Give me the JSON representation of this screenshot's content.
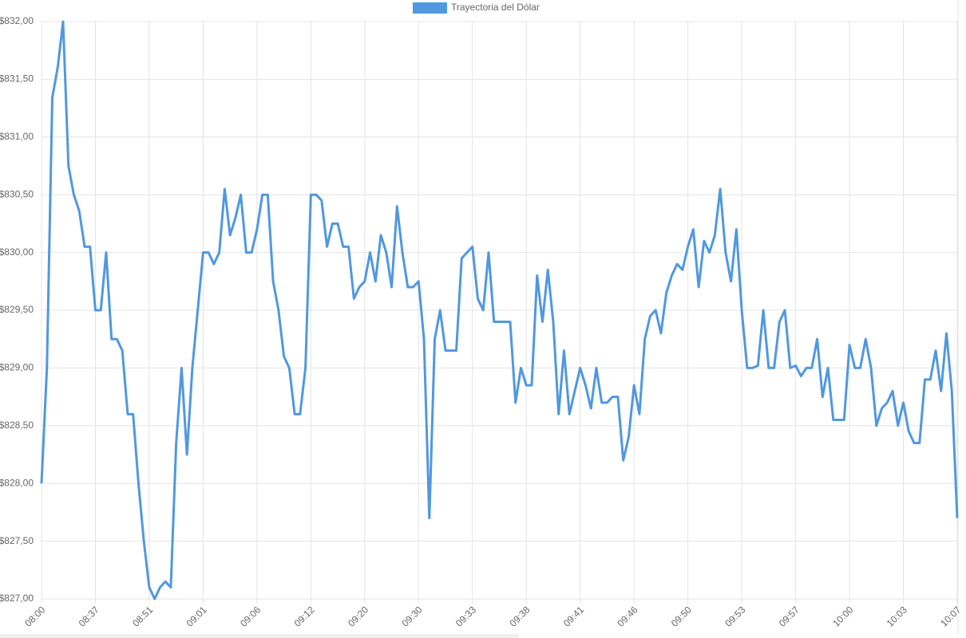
{
  "chart_data": {
    "type": "line",
    "legend": "top",
    "grid": true,
    "categories": [
      "08:00",
      null,
      null,
      null,
      null,
      null,
      null,
      null,
      null,
      null,
      "08:37",
      null,
      null,
      null,
      null,
      null,
      null,
      null,
      null,
      null,
      "08:51",
      null,
      null,
      null,
      null,
      null,
      null,
      null,
      null,
      null,
      "09:01",
      null,
      null,
      null,
      null,
      null,
      null,
      null,
      null,
      null,
      "09:06",
      null,
      null,
      null,
      null,
      null,
      null,
      null,
      null,
      null,
      "09:12",
      null,
      null,
      null,
      null,
      null,
      null,
      null,
      null,
      null,
      "09:20",
      null,
      null,
      null,
      null,
      null,
      null,
      null,
      null,
      null,
      "09:30",
      null,
      null,
      null,
      null,
      null,
      null,
      null,
      null,
      null,
      "09:33",
      null,
      null,
      null,
      null,
      null,
      null,
      null,
      null,
      null,
      "09:38",
      null,
      null,
      null,
      null,
      null,
      null,
      null,
      null,
      null,
      "09:41",
      null,
      null,
      null,
      null,
      null,
      null,
      null,
      null,
      null,
      "09:46",
      null,
      null,
      null,
      null,
      null,
      null,
      null,
      null,
      null,
      "09:50",
      null,
      null,
      null,
      null,
      null,
      null,
      null,
      null,
      null,
      "09:53",
      null,
      null,
      null,
      null,
      null,
      null,
      null,
      null,
      null,
      "09:57",
      null,
      null,
      null,
      null,
      null,
      null,
      null,
      null,
      null,
      "10:00",
      null,
      null,
      null,
      null,
      null,
      null,
      null,
      null,
      null,
      "10:03",
      null,
      null,
      null,
      null,
      null,
      null,
      null,
      null,
      null,
      "10:07"
    ],
    "series": [
      {
        "name": "Trayectoria del Dólar",
        "color": "#5098e0",
        "values": [
          828.0,
          829.0,
          831.34,
          831.6,
          832.0,
          830.75,
          830.5,
          830.36,
          830.05,
          830.05,
          829.5,
          829.5,
          830.0,
          829.25,
          829.25,
          829.15,
          828.6,
          828.6,
          828.0,
          827.5,
          827.1,
          827.0,
          827.1,
          827.15,
          827.1,
          828.35,
          829.0,
          828.25,
          829.0,
          829.5,
          830.0,
          830.0,
          829.9,
          830.0,
          830.55,
          830.15,
          830.3,
          830.5,
          830.0,
          830.0,
          830.2,
          830.5,
          830.5,
          829.75,
          829.5,
          829.1,
          829.0,
          828.6,
          828.6,
          829.0,
          830.5,
          830.5,
          830.45,
          830.05,
          830.25,
          830.25,
          830.05,
          830.05,
          829.6,
          829.7,
          829.75,
          830.0,
          829.75,
          830.15,
          830.0,
          829.7,
          830.4,
          830.0,
          829.7,
          829.7,
          829.75,
          829.25,
          827.7,
          829.25,
          829.5,
          829.15,
          829.15,
          829.15,
          829.95,
          830.0,
          830.05,
          829.6,
          829.5,
          830.0,
          829.4,
          829.4,
          829.4,
          829.4,
          828.7,
          829.0,
          828.85,
          828.85,
          829.8,
          829.4,
          829.85,
          829.4,
          828.6,
          829.15,
          828.6,
          828.8,
          829.0,
          828.85,
          828.65,
          829.0,
          828.7,
          828.7,
          828.75,
          828.75,
          828.2,
          828.4,
          828.85,
          828.6,
          829.25,
          829.45,
          829.5,
          829.3,
          829.65,
          829.8,
          829.9,
          829.85,
          830.05,
          830.2,
          829.7,
          830.1,
          830.0,
          830.15,
          830.55,
          830.0,
          829.75,
          830.2,
          829.5,
          829.0,
          829.0,
          829.02,
          829.5,
          829.0,
          829.0,
          829.4,
          829.5,
          829.0,
          829.02,
          828.93,
          829.0,
          829.0,
          829.25,
          828.75,
          829.0,
          828.55,
          828.55,
          828.55,
          829.2,
          829.0,
          829.0,
          829.25,
          829.0,
          828.5,
          828.65,
          828.7,
          828.8,
          828.5,
          828.7,
          828.45,
          828.35,
          828.35,
          828.9,
          828.9,
          829.15,
          828.8,
          829.3,
          828.8,
          827.7
        ]
      }
    ],
    "ylim": [
      827,
      832
    ],
    "yticks": [
      {
        "value": 827,
        "label": "$827,00"
      },
      {
        "value": 827.5,
        "label": "$827,50"
      },
      {
        "value": 828,
        "label": "$828,00"
      },
      {
        "value": 828.5,
        "label": "$828,50"
      },
      {
        "value": 829,
        "label": "$829,00"
      },
      {
        "value": 829.5,
        "label": "$829,50"
      },
      {
        "value": 830,
        "label": "$830,00"
      },
      {
        "value": 830.5,
        "label": "$830,50"
      },
      {
        "value": 831,
        "label": "$831,00"
      },
      {
        "value": 831.5,
        "label": "$831,50"
      },
      {
        "value": 832,
        "label": "$832,00"
      }
    ]
  }
}
